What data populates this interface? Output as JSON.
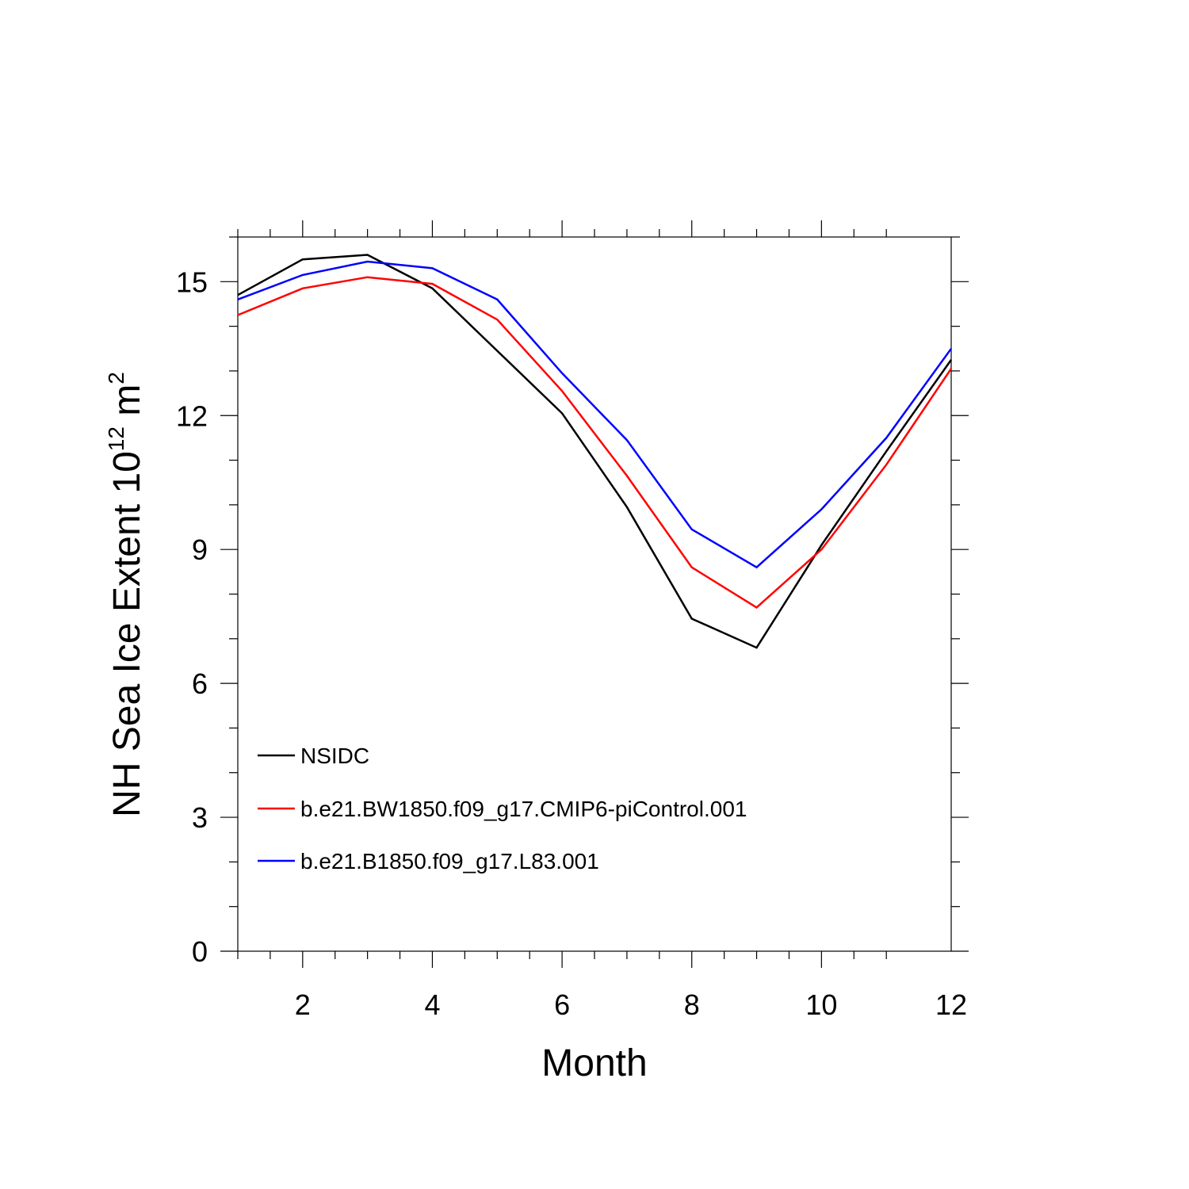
{
  "chart_data": {
    "type": "line",
    "xlabel": "Month",
    "ylabel": {
      "main": "NH Sea Ice Extent 10",
      "exponent1": "12",
      "unit": " m",
      "exponent2": "2"
    },
    "xlim": [
      1,
      12
    ],
    "ylim": [
      0,
      16
    ],
    "xticks": [
      2,
      4,
      6,
      8,
      10,
      12
    ],
    "yticks": [
      0,
      3,
      6,
      9,
      12,
      15
    ],
    "x": [
      1,
      2,
      3,
      4,
      5,
      6,
      7,
      8,
      9,
      10,
      11,
      12
    ],
    "legend_position": "lower-left",
    "grid": false,
    "series": [
      {
        "name": "NSIDC",
        "color": "#000000",
        "values": [
          14.7,
          15.5,
          15.6,
          14.85,
          13.45,
          12.05,
          9.95,
          7.45,
          6.8,
          9.1,
          11.2,
          13.25
        ]
      },
      {
        "name": "b.e21.BW1850.f09_g17.CMIP6-piControl.001",
        "color": "#ff0000",
        "values": [
          14.25,
          14.85,
          15.1,
          14.95,
          14.15,
          12.55,
          10.65,
          8.6,
          7.7,
          9.0,
          10.9,
          13.05
        ]
      },
      {
        "name": "b.e21.B1850.f09_g17.L83.001",
        "color": "#0000ff",
        "values": [
          14.6,
          15.15,
          15.45,
          15.3,
          14.6,
          12.95,
          11.45,
          9.45,
          8.6,
          9.9,
          11.5,
          13.5
        ]
      }
    ]
  }
}
